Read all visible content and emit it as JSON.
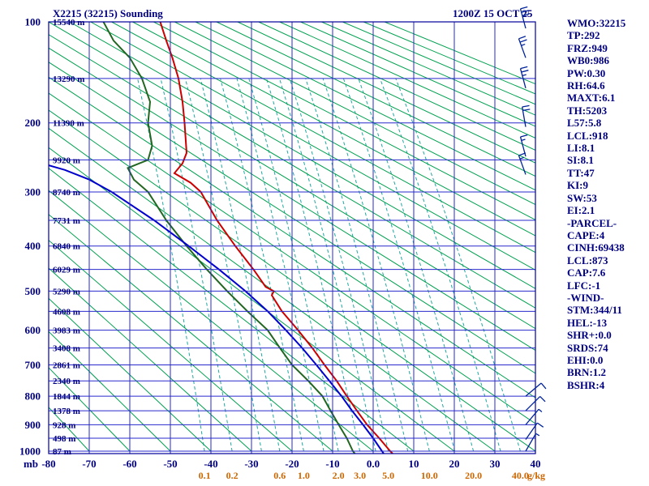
{
  "header": {
    "title": "X2215 (32215) Sounding",
    "datetime": "1200Z 15 OCT 25"
  },
  "stats_panel": {
    "lines": [
      "WMO:32215",
      "TP:292",
      "FRZ:949",
      "WB0:986",
      "PW:0.30",
      "RH:64.6",
      "MAXT:6.1",
      "TH:5203",
      "L57:5.8",
      "LCL:918",
      "LI:8.1",
      "SI:8.1",
      "TT:47",
      "KI:9",
      "SW:53",
      "EI:2.1",
      "-PARCEL-",
      "CAPE:4",
      "CINH:69438",
      "LCL:873",
      "CAP:7.6",
      "LFC:-1",
      "-WIND-",
      "STM:344/11",
      "HEL:-13",
      "SHR+:0.0",
      "SRDS:74",
      "EHI:0.0",
      "BRN:1.2",
      "BSHR:4"
    ]
  },
  "colors": {
    "frame": "#000099",
    "grid": "#2929cc",
    "dry_adiabat": "#00a050",
    "mixing_ratio": "#20a8a0",
    "axis_text": "#000080",
    "mixing_text": "#cc6600",
    "barb": "#002299"
  },
  "chart_data": {
    "type": "line",
    "diagram": "stuve_sounding",
    "title": "X2215 (32215) Sounding",
    "valid_time": "1200Z 15 OCT 25",
    "pressure_axis": {
      "unit": "mb",
      "range_mb": [
        100,
        1000
      ],
      "tick_labels": [
        "100",
        "200",
        "300",
        "400",
        "500",
        "600",
        "700",
        "800",
        "900",
        "1000"
      ],
      "gridline_step_mb": 50
    },
    "temperature_axis": {
      "unit": "C",
      "range_c": [
        -80,
        40
      ],
      "tick_values": [
        -80,
        -70,
        -60,
        -50,
        -40,
        -30,
        -20,
        -10,
        0,
        10,
        20,
        30,
        40
      ],
      "tick_labels": [
        "-80",
        "-70",
        "-60",
        "-50",
        "-40",
        "-30",
        "-20",
        "-10",
        "0.0",
        "10",
        "20",
        "30",
        "40"
      ]
    },
    "mixing_ratio_lines": {
      "unit": "g/kg",
      "labeled_values": [
        0.1,
        0.2,
        0.6,
        1.0,
        2.0,
        3.0,
        5.0,
        10.0,
        20.0,
        40.0
      ],
      "labels": [
        "0.1",
        "0.2",
        "0.6",
        "1.0",
        "2.0",
        "3.0",
        "5.0",
        "10.0",
        "20.0",
        "40.0"
      ],
      "unlabeled_values": [
        0.4,
        1.5,
        4,
        7,
        15,
        30
      ]
    },
    "dry_adiabats": {
      "theta_c_start": -80,
      "theta_c_end": 260,
      "theta_c_step": 10
    },
    "height_labels": [
      [
        100,
        "15540 m"
      ],
      [
        150,
        "13290 m"
      ],
      [
        200,
        "11390 m"
      ],
      [
        250,
        "9920 m"
      ],
      [
        300,
        "8740 m"
      ],
      [
        350,
        "7731 m"
      ],
      [
        400,
        "6840 m"
      ],
      [
        450,
        "6029 m"
      ],
      [
        500,
        "5290 m"
      ],
      [
        550,
        "4608 m"
      ],
      [
        600,
        "3983 m"
      ],
      [
        650,
        "3408 m"
      ],
      [
        700,
        "2861 m"
      ],
      [
        750,
        "2340 m"
      ],
      [
        800,
        "1844 m"
      ],
      [
        850,
        "1378 m"
      ],
      [
        900,
        "928 m"
      ],
      [
        950,
        "498 m"
      ],
      [
        1000,
        "87 m"
      ]
    ],
    "series": [
      {
        "name": "temperature",
        "color": "#cc0000",
        "points": [
          [
            1010,
            4.8
          ],
          [
            1000,
            4.2
          ],
          [
            950,
            1.5
          ],
          [
            900,
            -1.5
          ],
          [
            850,
            -4
          ],
          [
            800,
            -6.5
          ],
          [
            750,
            -9
          ],
          [
            700,
            -12
          ],
          [
            650,
            -15
          ],
          [
            600,
            -18.5
          ],
          [
            550,
            -22.5
          ],
          [
            510,
            -25
          ],
          [
            500,
            -24.5
          ],
          [
            490,
            -26.5
          ],
          [
            450,
            -29.5
          ],
          [
            400,
            -34
          ],
          [
            350,
            -38.5
          ],
          [
            300,
            -42.5
          ],
          [
            285,
            -45
          ],
          [
            270,
            -49
          ],
          [
            255,
            -47
          ],
          [
            240,
            -46
          ],
          [
            200,
            -46.5
          ],
          [
            175,
            -47
          ],
          [
            150,
            -48
          ],
          [
            130,
            -49.5
          ],
          [
            115,
            -51
          ],
          [
            100,
            -52.5
          ]
        ]
      },
      {
        "name": "dewpoint",
        "color": "#226622",
        "points": [
          [
            1010,
            -4.5
          ],
          [
            1000,
            -5
          ],
          [
            950,
            -6.5
          ],
          [
            900,
            -8.5
          ],
          [
            850,
            -10.5
          ],
          [
            800,
            -12.5
          ],
          [
            750,
            -16
          ],
          [
            700,
            -20
          ],
          [
            650,
            -23
          ],
          [
            600,
            -26
          ],
          [
            550,
            -31
          ],
          [
            500,
            -36
          ],
          [
            450,
            -41
          ],
          [
            400,
            -46
          ],
          [
            350,
            -51
          ],
          [
            300,
            -55.5
          ],
          [
            280,
            -59
          ],
          [
            262,
            -60.5
          ],
          [
            250,
            -55.5
          ],
          [
            230,
            -54.5
          ],
          [
            200,
            -55.5
          ],
          [
            175,
            -55
          ],
          [
            150,
            -57
          ],
          [
            130,
            -60
          ],
          [
            115,
            -64
          ],
          [
            100,
            -66.5
          ]
        ]
      },
      {
        "name": "parcel",
        "color": "#0000cc",
        "points": [
          [
            1010,
            2.6
          ],
          [
            950,
            0
          ],
          [
            900,
            -2.5
          ],
          [
            850,
            -5.2
          ],
          [
            800,
            -7.8
          ],
          [
            750,
            -10.8
          ],
          [
            700,
            -14
          ],
          [
            650,
            -17.5
          ],
          [
            600,
            -21.5
          ],
          [
            550,
            -26
          ],
          [
            500,
            -31.5
          ],
          [
            450,
            -38
          ],
          [
            400,
            -45.5
          ],
          [
            350,
            -54
          ],
          [
            300,
            -64.5
          ],
          [
            280,
            -70
          ],
          [
            265,
            -76
          ],
          [
            258,
            -80
          ]
        ]
      }
    ],
    "wind_barbs": [
      [
        105,
        345,
        30
      ],
      [
        130,
        340,
        25
      ],
      [
        160,
        345,
        25
      ],
      [
        205,
        350,
        20
      ],
      [
        245,
        345,
        15
      ],
      [
        272,
        340,
        15
      ],
      [
        800,
        50,
        10
      ],
      [
        850,
        45,
        10
      ],
      [
        900,
        40,
        5
      ],
      [
        955,
        35,
        10
      ],
      [
        1000,
        30,
        5
      ]
    ]
  }
}
